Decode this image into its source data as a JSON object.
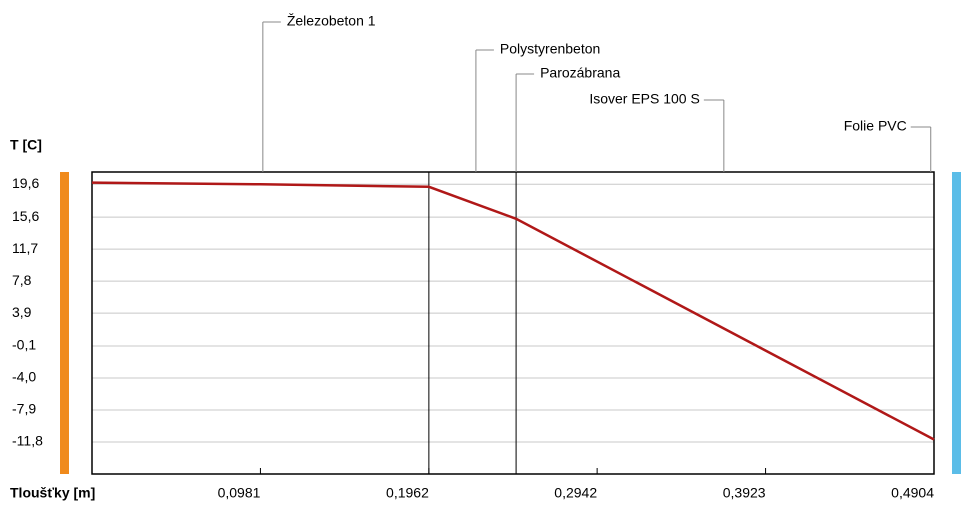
{
  "chart_data": {
    "type": "line",
    "ylabel": "T  [C]",
    "xlabel": "Tloušťky [m]",
    "x": [
      0,
      0.0981,
      0.1962,
      0.247,
      0.4904
    ],
    "series": [
      {
        "name": "T",
        "color": "#b01818",
        "values": [
          19.8,
          19.6,
          19.3,
          15.4,
          -11.5
        ]
      }
    ],
    "xlim": [
      0,
      0.4904
    ],
    "xticks": [
      {
        "value": 0.0981,
        "label": "0,0981"
      },
      {
        "value": 0.1962,
        "label": "0,1962"
      },
      {
        "value": 0.2942,
        "label": "0,2942"
      },
      {
        "value": 0.3923,
        "label": "0,3923"
      },
      {
        "value": 0.4904,
        "label": "0,4904"
      }
    ],
    "ylim": [
      -15.7,
      21.1
    ],
    "yticks": [
      {
        "value": 19.6,
        "label": "19,6"
      },
      {
        "value": 15.6,
        "label": "15,6"
      },
      {
        "value": 11.7,
        "label": "11,7"
      },
      {
        "value": 7.8,
        "label": "7,8"
      },
      {
        "value": 3.9,
        "label": "3,9"
      },
      {
        "value": -0.1,
        "label": "-0,1"
      },
      {
        "value": -4.0,
        "label": "-4,0"
      },
      {
        "value": -7.9,
        "label": "-7,9"
      },
      {
        "value": -11.8,
        "label": "-11,8"
      }
    ],
    "grid": true,
    "boundaries": [
      0.1962,
      0.247
    ],
    "layers": [
      {
        "name": "Železobeton 1",
        "center": 0.0995
      },
      {
        "name": "Polystyrenbeton",
        "center": 0.2236
      },
      {
        "name": "Parozábrana",
        "center": 0.247
      },
      {
        "name": "Isover EPS 100 S",
        "center": 0.368
      },
      {
        "name": "Folie PVC",
        "center": 0.4885
      }
    ],
    "inside_color": "#f08a1c",
    "outside_color": "#5bbde8"
  }
}
